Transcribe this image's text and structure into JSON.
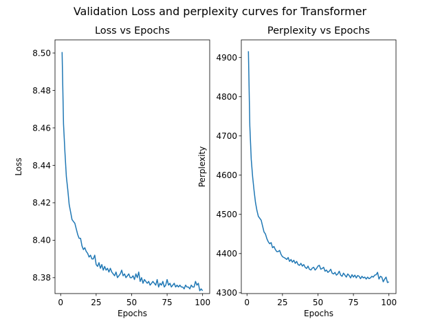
{
  "suptitle": "Validation Loss and perplexity curves for Transformer",
  "colors": {
    "line": "#1f77b4",
    "axes": "#000000",
    "background": "#ffffff"
  },
  "chart_data": [
    {
      "type": "line",
      "title": "Loss vs Epochs",
      "xlabel": "Epochs",
      "ylabel": "Loss",
      "xlim": [
        -4,
        105
      ],
      "ylim": [
        8.3715,
        8.507
      ],
      "xticks": [
        0,
        25,
        50,
        75,
        100
      ],
      "yticks": [
        8.38,
        8.4,
        8.42,
        8.44,
        8.46,
        8.48,
        8.5
      ],
      "ytick_decimals": 2,
      "grid": false,
      "x": [
        1,
        2,
        3,
        4,
        5,
        6,
        7,
        8,
        9,
        10,
        11,
        12,
        13,
        14,
        15,
        16,
        17,
        18,
        19,
        20,
        21,
        22,
        23,
        24,
        25,
        26,
        27,
        28,
        29,
        30,
        31,
        32,
        33,
        34,
        35,
        36,
        37,
        38,
        39,
        40,
        41,
        42,
        43,
        44,
        45,
        46,
        47,
        48,
        49,
        50,
        51,
        52,
        53,
        54,
        55,
        56,
        57,
        58,
        59,
        60,
        61,
        62,
        63,
        64,
        65,
        66,
        67,
        68,
        69,
        70,
        71,
        72,
        73,
        74,
        75,
        76,
        77,
        78,
        79,
        80,
        81,
        82,
        83,
        84,
        85,
        86,
        87,
        88,
        89,
        90,
        91,
        92,
        93,
        94,
        95,
        96,
        97,
        98,
        99,
        100
      ],
      "y": [
        8.5005,
        8.462,
        8.447,
        8.434,
        8.427,
        8.419,
        8.415,
        8.411,
        8.41,
        8.409,
        8.406,
        8.403,
        8.401,
        8.401,
        8.397,
        8.395,
        8.396,
        8.394,
        8.393,
        8.391,
        8.392,
        8.39,
        8.39,
        8.392,
        8.387,
        8.386,
        8.388,
        8.385,
        8.387,
        8.384,
        8.386,
        8.384,
        8.385,
        8.383,
        8.385,
        8.383,
        8.382,
        8.381,
        8.383,
        8.38,
        8.381,
        8.382,
        8.384,
        8.381,
        8.382,
        8.38,
        8.381,
        8.382,
        8.38,
        8.38,
        8.381,
        8.379,
        8.382,
        8.38,
        8.383,
        8.378,
        8.38,
        8.377,
        8.379,
        8.378,
        8.377,
        8.378,
        8.376,
        8.377,
        8.378,
        8.377,
        8.376,
        8.379,
        8.375,
        8.377,
        8.376,
        8.378,
        8.375,
        8.376,
        8.379,
        8.376,
        8.377,
        8.375,
        8.376,
        8.377,
        8.375,
        8.376,
        8.375,
        8.376,
        8.375,
        8.375,
        8.374,
        8.376,
        8.375,
        8.375,
        8.374,
        8.376,
        8.375,
        8.375,
        8.378,
        8.376,
        8.377,
        8.373,
        8.374,
        8.373
      ]
    },
    {
      "type": "line",
      "title": "Perplexity vs Epochs",
      "xlabel": "Epochs",
      "ylabel": "Perplexity",
      "xlim": [
        -4,
        105
      ],
      "ylim": [
        4298,
        4945
      ],
      "xticks": [
        0,
        25,
        50,
        75,
        100
      ],
      "yticks": [
        4300,
        4400,
        4500,
        4600,
        4700,
        4800,
        4900
      ],
      "ytick_decimals": 0,
      "grid": false,
      "x": [
        1,
        2,
        3,
        4,
        5,
        6,
        7,
        8,
        9,
        10,
        11,
        12,
        13,
        14,
        15,
        16,
        17,
        18,
        19,
        20,
        21,
        22,
        23,
        24,
        25,
        26,
        27,
        28,
        29,
        30,
        31,
        32,
        33,
        34,
        35,
        36,
        37,
        38,
        39,
        40,
        41,
        42,
        43,
        44,
        45,
        46,
        47,
        48,
        49,
        50,
        51,
        52,
        53,
        54,
        55,
        56,
        57,
        58,
        59,
        60,
        61,
        62,
        63,
        64,
        65,
        66,
        67,
        68,
        69,
        70,
        71,
        72,
        73,
        74,
        75,
        76,
        77,
        78,
        79,
        80,
        81,
        82,
        83,
        84,
        85,
        86,
        87,
        88,
        89,
        90,
        91,
        92,
        93,
        94,
        95,
        96,
        97,
        98,
        99,
        100
      ],
      "y": [
        4916,
        4725,
        4640,
        4595,
        4560,
        4530,
        4510,
        4495,
        4490,
        4485,
        4470,
        4455,
        4450,
        4438,
        4430,
        4425,
        4428,
        4415,
        4418,
        4410,
        4405,
        4405,
        4408,
        4398,
        4392,
        4390,
        4388,
        4385,
        4390,
        4380,
        4385,
        4378,
        4383,
        4375,
        4380,
        4372,
        4370,
        4375,
        4368,
        4372,
        4365,
        4362,
        4368,
        4360,
        4358,
        4363,
        4365,
        4358,
        4362,
        4368,
        4370,
        4360,
        4362,
        4365,
        4355,
        4358,
        4352,
        4355,
        4360,
        4350,
        4348,
        4352,
        4345,
        4348,
        4355,
        4345,
        4342,
        4350,
        4345,
        4340,
        4348,
        4344,
        4338,
        4346,
        4340,
        4345,
        4338,
        4344,
        4342,
        4336,
        4342,
        4338,
        4340,
        4335,
        4340,
        4336,
        4338,
        4342,
        4340,
        4345,
        4346,
        4352,
        4335,
        4342,
        4340,
        4328,
        4335,
        4340,
        4326,
        4328
      ]
    }
  ]
}
